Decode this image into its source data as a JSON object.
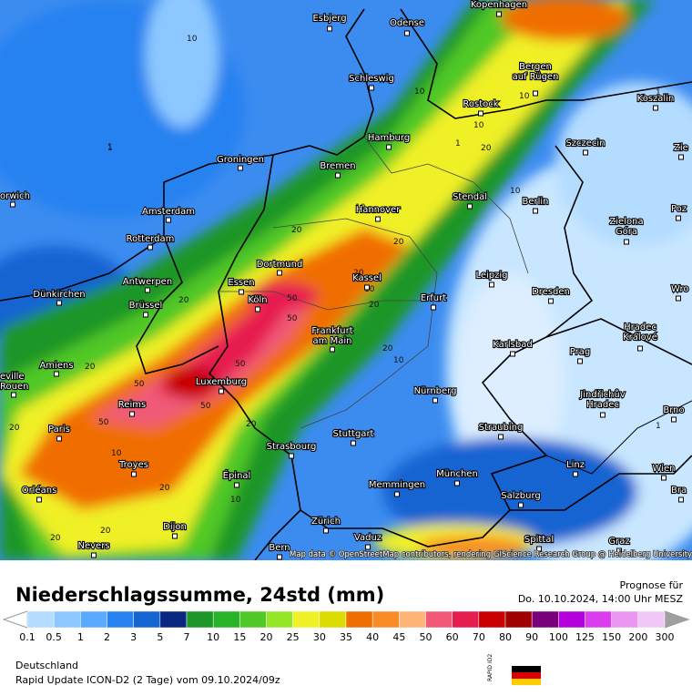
{
  "map": {
    "attribution": "Map data © OpenStreetMap contributors, rendering GIScience Research Group @ Heidelberg University",
    "cities": [
      {
        "lines": [
          "Kopenhagen"
        ]
      },
      {
        "lines": [
          "Esbjerg"
        ]
      },
      {
        "lines": [
          "Odense"
        ]
      },
      {
        "lines": [
          "Schleswig"
        ]
      },
      {
        "lines": [
          "Bergen",
          "auf Rügen"
        ]
      },
      {
        "lines": [
          "Rostock"
        ]
      },
      {
        "lines": [
          "Koszalin"
        ]
      },
      {
        "lines": [
          "Hamburg"
        ]
      },
      {
        "lines": [
          "Szczecin"
        ]
      },
      {
        "lines": [
          "Groningen"
        ]
      },
      {
        "lines": [
          "Bremen"
        ]
      },
      {
        "lines": [
          "orwich"
        ]
      },
      {
        "lines": [
          "Amsterdam"
        ]
      },
      {
        "lines": [
          "Stendal"
        ]
      },
      {
        "lines": [
          "Berlin"
        ]
      },
      {
        "lines": [
          "Poz"
        ]
      },
      {
        "lines": [
          "Hannover"
        ]
      },
      {
        "lines": [
          "Zielona",
          "Góra"
        ]
      },
      {
        "lines": [
          "Rotterdam"
        ]
      },
      {
        "lines": [
          "Dortmund"
        ]
      },
      {
        "lines": [
          "Essen"
        ]
      },
      {
        "lines": [
          "Antwerpen"
        ]
      },
      {
        "lines": [
          "Kassel"
        ]
      },
      {
        "lines": [
          "Leipzig"
        ]
      },
      {
        "lines": [
          "Dünkirchen"
        ]
      },
      {
        "lines": [
          "Köln"
        ]
      },
      {
        "lines": [
          "Erfurt"
        ]
      },
      {
        "lines": [
          "Dresden"
        ]
      },
      {
        "lines": [
          "Wro"
        ]
      },
      {
        "lines": [
          "Brüssel"
        ]
      },
      {
        "lines": [
          "Frankfurt",
          "am Main"
        ]
      },
      {
        "lines": [
          "Karlsbad"
        ]
      },
      {
        "lines": [
          "Hradec",
          "Králové"
        ]
      },
      {
        "lines": [
          "Prag"
        ]
      },
      {
        "lines": [
          "Amiens"
        ]
      },
      {
        "lines": [
          "eville",
          "Rouen"
        ]
      },
      {
        "lines": [
          "Luxemburg"
        ]
      },
      {
        "lines": [
          "Nürnberg"
        ]
      },
      {
        "lines": [
          "Reims"
        ]
      },
      {
        "lines": [
          "Jindřichův",
          "Hradec"
        ]
      },
      {
        "lines": [
          "Brno"
        ]
      },
      {
        "lines": [
          "Paris"
        ]
      },
      {
        "lines": [
          "Stuttgart"
        ]
      },
      {
        "lines": [
          "Straubing"
        ]
      },
      {
        "lines": [
          "Strasbourg"
        ]
      },
      {
        "lines": [
          "Troyes"
        ]
      },
      {
        "lines": [
          "Linz"
        ]
      },
      {
        "lines": [
          "Wien"
        ]
      },
      {
        "lines": [
          "Épinal"
        ]
      },
      {
        "lines": [
          "München"
        ]
      },
      {
        "lines": [
          "Memmingen"
        ]
      },
      {
        "lines": [
          "Orléans"
        ]
      },
      {
        "lines": [
          "Salzburg"
        ]
      },
      {
        "lines": [
          "Zürich"
        ]
      },
      {
        "lines": [
          "Vaduz"
        ]
      },
      {
        "lines": [
          "Dijon"
        ]
      },
      {
        "lines": [
          "Nevers"
        ]
      },
      {
        "lines": [
          "Bern"
        ]
      },
      {
        "lines": [
          "Spittal"
        ]
      },
      {
        "lines": [
          "Graz"
        ]
      },
      {
        "lines": [
          "Bra"
        ]
      },
      {
        "lines": [
          "Zie"
        ]
      }
    ],
    "contour_labels": [
      "10",
      "10",
      "1",
      "10",
      "20",
      "10",
      "20",
      "20",
      "10",
      "20",
      "20",
      "50",
      "50",
      "20",
      "20",
      "50",
      "50",
      "50",
      "20",
      "10",
      "20",
      "50",
      "20",
      "10",
      "20",
      "10",
      "1",
      "1",
      "10",
      "20",
      "20",
      "1",
      "1",
      "10"
    ]
  },
  "footer": {
    "title": "Niederschlagssumme, 24std (mm)",
    "forecast_label": "Prognose für",
    "forecast_time": "Do. 10.10.2024, 14:00 Uhr MESZ",
    "region": "Deutschland",
    "model": "Rapid Update ICON-D2 (2 Tage) vom  09.10.2024/09z",
    "logo": "RAPID ID2"
  },
  "legend": {
    "ticks": [
      "0.1",
      "0.5",
      "1",
      "2",
      "3",
      "5",
      "7",
      "10",
      "15",
      "20",
      "25",
      "30",
      "35",
      "40",
      "45",
      "50",
      "60",
      "70",
      "80",
      "90",
      "100",
      "125",
      "150",
      "200",
      "300"
    ],
    "colors": [
      "#b4dcff",
      "#8cc8ff",
      "#5aaaff",
      "#2882f0",
      "#1464d2",
      "#0a2882",
      "#1e9628",
      "#28b428",
      "#50c828",
      "#96e628",
      "#f0f028",
      "#dcdc00",
      "#f06e00",
      "#fa8c28",
      "#ffb478",
      "#f05a78",
      "#e61e50",
      "#c80000",
      "#a00000",
      "#780078",
      "#b400dc",
      "#dc3cf0",
      "#eb96f0",
      "#f0c8f5"
    ],
    "low_color": "#ffffff",
    "high_color": "#a0a0a0"
  }
}
